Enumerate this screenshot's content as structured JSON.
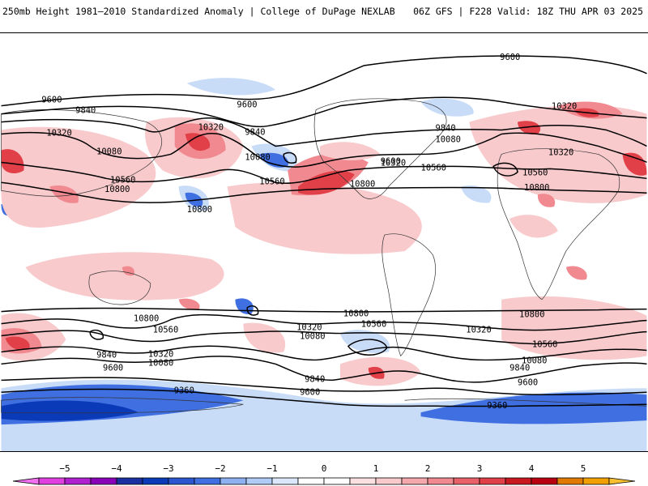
{
  "header": {
    "title_left": "250mb Height 1981–2010 Standardized Anomaly | College of DuPage NEXLAB",
    "title_right": "06Z GFS | F228 Valid: 18Z THU APR 03 2025"
  },
  "colors": {
    "neg5": "#e040e0",
    "neg4": "#8a00b8",
    "neg3": "#0a3ab8",
    "neg2": "#3f6fe0",
    "neg1": "#c8dcf8",
    "zero": "#ffffff",
    "pos1": "#f8cacc",
    "pos2": "#f08a90",
    "pos3": "#e24048",
    "pos4": "#b80010",
    "pos5": "#f2a000",
    "contour": "#000000",
    "border": "#333333"
  },
  "legend": {
    "ticks": [
      "−5",
      "−4",
      "−3",
      "−2",
      "−1",
      "0",
      "1",
      "2",
      "3",
      "4",
      "5"
    ]
  },
  "contours": {
    "labels": [
      "9600",
      "9840",
      "10080",
      "10320",
      "10560",
      "10800",
      "9360"
    ]
  },
  "map_labels": [
    "9600",
    "9840",
    "10320",
    "10080",
    "10560",
    "10800",
    "9600",
    "10320",
    "9840",
    "10080",
    "10560",
    "10800",
    "9600",
    "10320",
    "9840",
    "10080",
    "10320",
    "10560",
    "10800",
    "9600",
    "10320",
    "9840",
    "10080",
    "10320",
    "10560",
    "10800",
    "10800",
    "10560",
    "10320",
    "10080",
    "9840",
    "9600",
    "9360",
    "10800",
    "10560",
    "10320",
    "10080",
    "9840",
    "9600",
    "9360",
    "10800",
    "10560",
    "10320",
    "10080",
    "9840",
    "9600",
    "9360",
    "9840",
    "9600"
  ]
}
